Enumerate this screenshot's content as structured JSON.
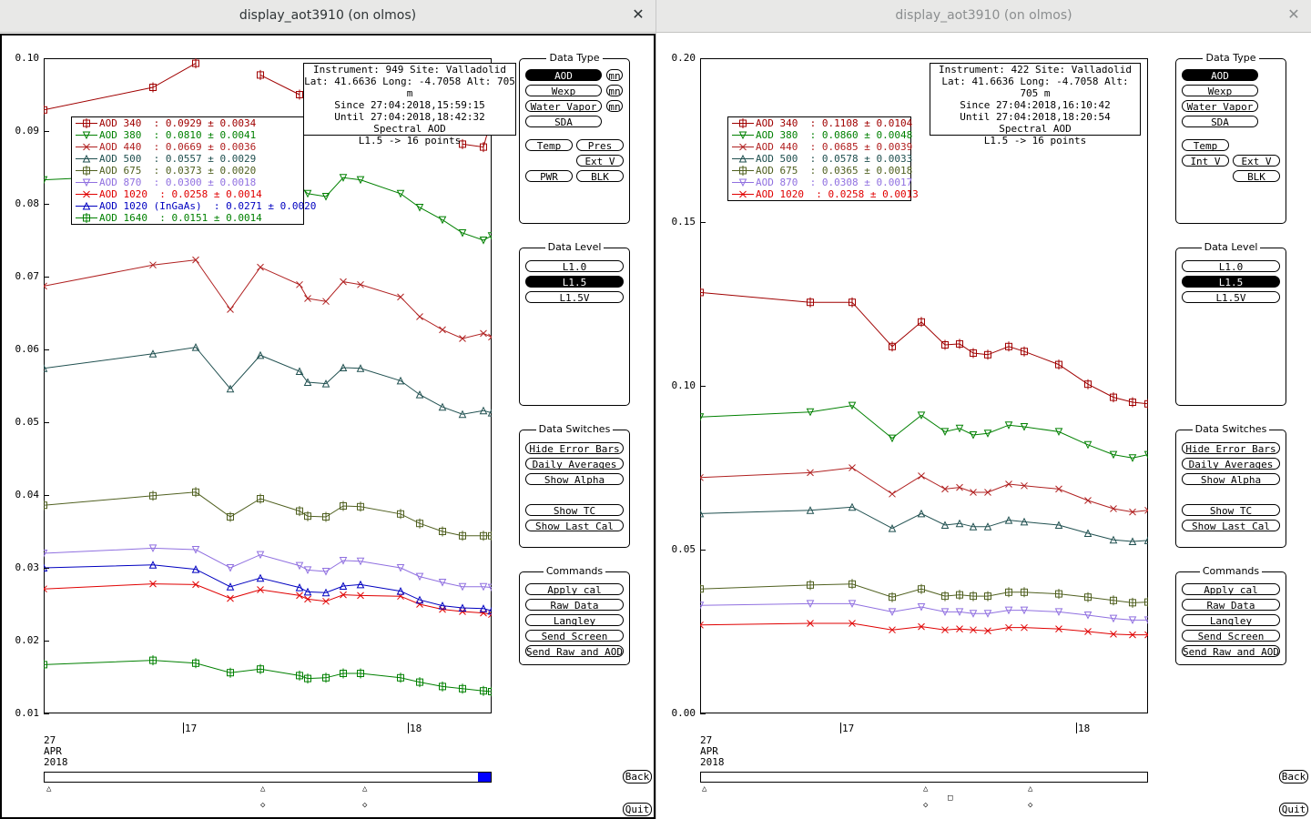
{
  "windows": [
    {
      "id": "left",
      "title": "display_aot3910 (on olmos)",
      "close_glyph": "✕",
      "active": true,
      "info": [
        "Instrument: 949 Site: Valladolid",
        "Lat: 41.6636 Long: -4.7058 Alt: 705 m",
        "Since 27:04:2018,15:59:15",
        "Until 27:04:2018,18:42:32",
        "Spectral AOD",
        "L1.5 -> 16 points"
      ],
      "legend": [
        {
          "label": "AOD 340  : 0.0929 ± 0.0034",
          "color": "#a00000",
          "marker": "square"
        },
        {
          "label": "AOD 380  : 0.0810 ± 0.0041",
          "color": "#008000",
          "marker": "tri-down"
        },
        {
          "label": "AOD 440  : 0.0669 ± 0.0036",
          "color": "#b02020",
          "marker": "x"
        },
        {
          "label": "AOD 500  : 0.0557 ± 0.0029",
          "color": "#205050",
          "marker": "tri-up"
        },
        {
          "label": "AOD 675  : 0.0373 ± 0.0020",
          "color": "#506020",
          "marker": "square"
        },
        {
          "label": "AOD 870  : 0.0300 ± 0.0018",
          "color": "#9070e0",
          "marker": "tri-down"
        },
        {
          "label": "AOD 1020  : 0.0258 ± 0.0014",
          "color": "#e00000",
          "marker": "x"
        },
        {
          "label": "AOD 1020 (InGaAs)  : 0.0271 ± 0.0020",
          "color": "#0000c0",
          "marker": "tri-up"
        },
        {
          "label": "AOD 1640  : 0.0151 ± 0.0014",
          "color": "#008000",
          "marker": "square"
        }
      ],
      "y_ticks": [
        "0.10",
        "0.09",
        "0.08",
        "0.07",
        "0.06",
        "0.05",
        "0.04",
        "0.03",
        "0.02",
        "0.01"
      ],
      "ymin": 0.01,
      "ymax": 0.1,
      "x_ticks": [
        "17",
        "18"
      ],
      "date_lines": [
        "27",
        "APR",
        "2018"
      ],
      "scroll_markers": [
        "△",
        "△",
        "◇",
        "△",
        "◇"
      ],
      "back_label": "Back",
      "quit_label": "Quit"
    },
    {
      "id": "right",
      "title": "display_aot3910 (on olmos)",
      "close_glyph": "✕",
      "active": false,
      "info": [
        "Instrument: 422 Site: Valladolid",
        "Lat: 41.6636 Long: -4.7058 Alt: 705 m",
        "Since 27:04:2018,16:10:42",
        "Until 27:04:2018,18:20:54",
        "Spectral AOD",
        "L1.5 -> 16 points"
      ],
      "legend": [
        {
          "label": "AOD 340  : 0.1108 ± 0.0104",
          "color": "#a00000",
          "marker": "square"
        },
        {
          "label": "AOD 380  : 0.0860 ± 0.0048",
          "color": "#008000",
          "marker": "tri-down"
        },
        {
          "label": "AOD 440  : 0.0685 ± 0.0039",
          "color": "#b02020",
          "marker": "x"
        },
        {
          "label": "AOD 500  : 0.0578 ± 0.0033",
          "color": "#205050",
          "marker": "tri-up"
        },
        {
          "label": "AOD 675  : 0.0365 ± 0.0018",
          "color": "#506020",
          "marker": "square"
        },
        {
          "label": "AOD 870  : 0.0308 ± 0.0017",
          "color": "#9070e0",
          "marker": "tri-down"
        },
        {
          "label": "AOD 1020  : 0.0258 ± 0.0013",
          "color": "#e00000",
          "marker": "x"
        }
      ],
      "y_ticks": [
        "0.20",
        "0.15",
        "0.10",
        "0.05",
        "0.00"
      ],
      "ymin": 0.0,
      "ymax": 0.2,
      "x_ticks": [
        "17",
        "18"
      ],
      "date_lines": [
        "27",
        "APR",
        "2018"
      ],
      "scroll_markers": [
        "△",
        "△",
        "◇",
        "□",
        "△",
        "◇"
      ],
      "back_label": "Back",
      "quit_label": "Quit"
    }
  ],
  "panels": {
    "data_type": {
      "title": "Data Type",
      "buttons": [
        "AOD",
        "Wexp",
        "Water Vapor",
        "SDA",
        "Temp",
        "Pres",
        "Ext V",
        "PWR",
        "BLK",
        "mn",
        "mn",
        "mn"
      ],
      "right_buttons": [
        "AOD",
        "Wexp",
        "Water Vapor",
        "SDA",
        "Temp",
        "Int V",
        "Ext V",
        "BLK"
      ]
    },
    "data_level": {
      "title": "Data Level",
      "buttons": [
        "L1.0",
        "L1.5",
        "L1.5V"
      ],
      "selected": "L1.5"
    },
    "data_switches": {
      "title": "Data Switches",
      "buttons": [
        "Hide Error Bars",
        "Daily Averages",
        "Show Alpha",
        "Show TC",
        "Show Last Cal"
      ]
    },
    "commands": {
      "title": "Commands",
      "buttons": [
        "Apply cal",
        "Raw Data",
        "Langley",
        "Send Screen",
        "Send Raw and AOD"
      ]
    }
  },
  "chart_data": [
    {
      "type": "line",
      "window": "left",
      "x": [
        "15:59",
        "16:34",
        "16:45",
        "16:54",
        "17:03",
        "17:12",
        "17:14",
        "17:20",
        "17:25",
        "17:31",
        "17:47",
        "17:55",
        "18:05",
        "18:19",
        "18:30",
        "18:42"
      ],
      "ylim": [
        0.01,
        0.1
      ],
      "series": [
        {
          "name": "AOD 340",
          "color": "#a00000",
          "values": [
            0.0929,
            0.096,
            0.0993,
            null,
            0.0977,
            0.095,
            null,
            null,
            null,
            null,
            null,
            null,
            null,
            0.0882,
            0.0878,
            0.0918
          ]
        },
        {
          "name": "AOD 380",
          "color": "#008000",
          "values": [
            0.0833,
            0.084,
            0.0848,
            0.0788,
            0.0838,
            0.0825,
            0.0814,
            0.081,
            0.0836,
            0.0833,
            0.0814,
            0.0795,
            0.0778,
            0.076,
            0.075,
            0.0756
          ]
        },
        {
          "name": "AOD 440",
          "color": "#b02020",
          "values": [
            0.0687,
            0.0716,
            0.0723,
            0.0655,
            0.0713,
            0.0689,
            0.067,
            0.0666,
            0.0693,
            0.0689,
            0.0672,
            0.0645,
            0.0627,
            0.0615,
            0.0622,
            0.0617
          ]
        },
        {
          "name": "AOD 500",
          "color": "#205050",
          "values": [
            0.0574,
            0.0594,
            0.0603,
            0.0546,
            0.0592,
            0.057,
            0.0555,
            0.0553,
            0.0575,
            0.0574,
            0.0557,
            0.0538,
            0.0521,
            0.0511,
            0.0516,
            0.0513
          ]
        },
        {
          "name": "AOD 675",
          "color": "#506020",
          "values": [
            0.0386,
            0.0399,
            0.0404,
            0.037,
            0.0395,
            0.0378,
            0.0371,
            0.037,
            0.0385,
            0.0384,
            0.0374,
            0.0361,
            0.035,
            0.0344,
            0.0344,
            0.0344
          ]
        },
        {
          "name": "AOD 870",
          "color": "#9070e0",
          "values": [
            0.032,
            0.0327,
            0.0325,
            0.03,
            0.0318,
            0.0303,
            0.0297,
            0.0295,
            0.031,
            0.0309,
            0.03,
            0.0288,
            0.028,
            0.0274,
            0.0274,
            0.0273
          ]
        },
        {
          "name": "AOD 1020",
          "color": "#e00000",
          "values": [
            0.0271,
            0.0278,
            0.0277,
            0.0258,
            0.027,
            0.0262,
            0.0257,
            0.0254,
            0.0263,
            0.0262,
            0.0261,
            0.025,
            0.0243,
            0.024,
            0.0238,
            0.0236
          ]
        },
        {
          "name": "AOD 1020 (InGaAs)",
          "color": "#0000c0",
          "values": [
            0.03,
            0.0304,
            0.0298,
            0.0274,
            0.0286,
            0.0273,
            0.0267,
            0.0266,
            0.0275,
            0.0277,
            0.0268,
            0.0256,
            0.0248,
            0.0245,
            0.0244,
            0.0241
          ]
        },
        {
          "name": "AOD 1640",
          "color": "#008000",
          "values": [
            0.0167,
            0.0173,
            0.0169,
            0.0156,
            0.0161,
            0.0152,
            0.0148,
            0.0149,
            0.0155,
            0.0155,
            0.0149,
            0.0143,
            0.0137,
            0.0134,
            0.0131,
            0.013
          ]
        }
      ]
    },
    {
      "type": "line",
      "window": "right",
      "x": [
        "16:10",
        "16:36",
        "16:46",
        "16:54",
        "17:03",
        "17:09",
        "17:14",
        "17:17",
        "17:22",
        "17:26",
        "17:31",
        "17:45",
        "17:53",
        "18:03",
        "18:11",
        "18:20"
      ],
      "ylim": [
        0.0,
        0.2
      ],
      "series": [
        {
          "name": "AOD 340",
          "color": "#a00000",
          "values": [
            0.1285,
            0.1255,
            0.1255,
            0.112,
            0.1195,
            0.1125,
            0.1128,
            0.11,
            0.1095,
            0.112,
            0.1105,
            0.1065,
            0.1005,
            0.0965,
            0.095,
            0.0945
          ]
        },
        {
          "name": "AOD 380",
          "color": "#008000",
          "values": [
            0.0905,
            0.092,
            0.094,
            0.084,
            0.091,
            0.086,
            0.087,
            0.085,
            0.0855,
            0.088,
            0.0875,
            0.086,
            0.082,
            0.079,
            0.078,
            0.079
          ]
        },
        {
          "name": "AOD 440",
          "color": "#b02020",
          "values": [
            0.072,
            0.0735,
            0.075,
            0.067,
            0.0725,
            0.0685,
            0.069,
            0.0675,
            0.0675,
            0.07,
            0.0695,
            0.0685,
            0.065,
            0.0625,
            0.0615,
            0.062
          ]
        },
        {
          "name": "AOD 500",
          "color": "#205050",
          "values": [
            0.061,
            0.062,
            0.063,
            0.0565,
            0.061,
            0.0575,
            0.058,
            0.057,
            0.057,
            0.059,
            0.0585,
            0.0575,
            0.055,
            0.053,
            0.0525,
            0.0528
          ]
        },
        {
          "name": "AOD 675",
          "color": "#506020",
          "values": [
            0.038,
            0.0392,
            0.0395,
            0.0355,
            0.038,
            0.0358,
            0.0362,
            0.0358,
            0.0358,
            0.037,
            0.037,
            0.0365,
            0.0355,
            0.0345,
            0.0338,
            0.034
          ]
        },
        {
          "name": "AOD 870",
          "color": "#9070e0",
          "values": [
            0.033,
            0.0335,
            0.0335,
            0.031,
            0.0325,
            0.031,
            0.031,
            0.0305,
            0.0305,
            0.0315,
            0.0315,
            0.031,
            0.03,
            0.029,
            0.0285,
            0.0285
          ]
        },
        {
          "name": "AOD 1020",
          "color": "#e00000",
          "values": [
            0.027,
            0.0275,
            0.0275,
            0.0255,
            0.0265,
            0.0255,
            0.0258,
            0.0255,
            0.0252,
            0.0262,
            0.0262,
            0.0258,
            0.025,
            0.0242,
            0.024,
            0.024
          ]
        }
      ]
    }
  ]
}
